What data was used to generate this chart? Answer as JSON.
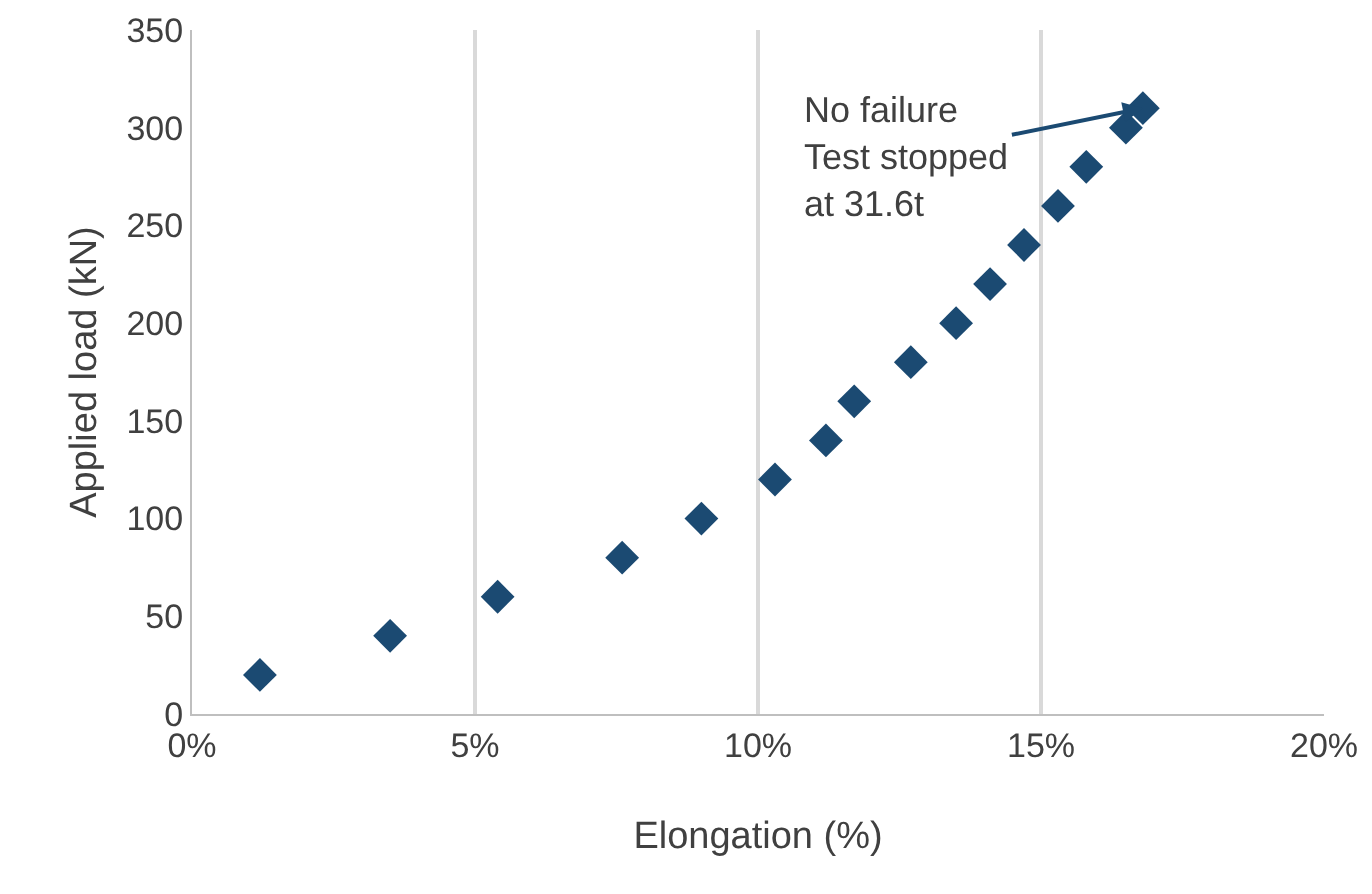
{
  "chart_data": {
    "type": "scatter",
    "xlabel": "Elongation (%)",
    "ylabel": "Applied load (kN)",
    "x": [
      1.2,
      3.5,
      5.4,
      7.6,
      9.0,
      10.3,
      11.2,
      11.7,
      12.7,
      13.5,
      14.1,
      14.7,
      15.3,
      15.8,
      16.5,
      16.8
    ],
    "series": [
      {
        "color": "#1b4a72",
        "values": [
          20,
          40,
          60,
          80,
          100,
          120,
          140,
          160,
          180,
          200,
          220,
          240,
          260,
          280,
          300,
          310
        ]
      }
    ],
    "xlim": [
      0,
      20
    ],
    "xticks": [
      {
        "value": 0,
        "label": "0%"
      },
      {
        "value": 5,
        "label": "5%"
      },
      {
        "value": 10,
        "label": "10%"
      },
      {
        "value": 15,
        "label": "15%"
      },
      {
        "value": 20,
        "label": "20%"
      }
    ],
    "ylim": [
      0,
      350
    ],
    "yticks": [
      0,
      50,
      100,
      150,
      200,
      250,
      300,
      350
    ],
    "grid": "x",
    "marker": "diamond",
    "annotations": [
      {
        "text": "No failure\nTest stopped\nat 31.6t",
        "x": 16.8,
        "y": 310
      }
    ]
  }
}
